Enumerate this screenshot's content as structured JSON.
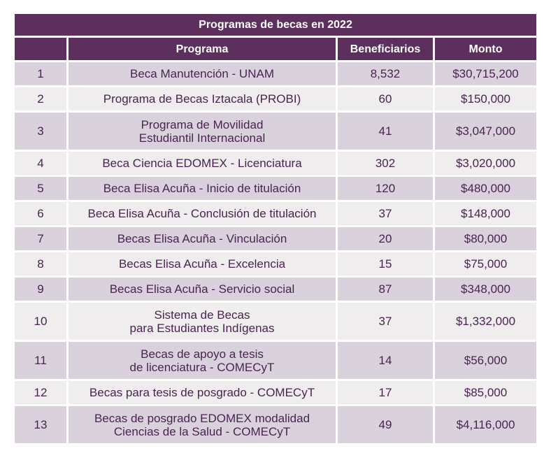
{
  "table": {
    "title": "Programas de becas en 2022",
    "headers": {
      "number": "",
      "program": "Programa",
      "beneficiaries": "Beneficiarios",
      "amount": "Monto"
    },
    "rows": [
      {
        "num": "1",
        "program": [
          "Beca Manutención - UNAM"
        ],
        "beneficiaries": "8,532",
        "amount": "$30,715,200"
      },
      {
        "num": "2",
        "program": [
          "Programa de Becas Iztacala (PROBI)"
        ],
        "beneficiaries": "60",
        "amount": "$150,000"
      },
      {
        "num": "3",
        "program": [
          "Programa de Movilidad",
          "Estudiantil Internacional"
        ],
        "beneficiaries": "41",
        "amount": "$3,047,000"
      },
      {
        "num": "4",
        "program": [
          "Beca Ciencia EDOMEX - Licenciatura"
        ],
        "beneficiaries": "302",
        "amount": "$3,020,000"
      },
      {
        "num": "5",
        "program": [
          "Beca Elisa Acuña - Inicio de titulación"
        ],
        "beneficiaries": "120",
        "amount": "$480,000"
      },
      {
        "num": "6",
        "program": [
          "Beca Elisa Acuña - Conclusión de titulación"
        ],
        "beneficiaries": "37",
        "amount": "$148,000"
      },
      {
        "num": "7",
        "program": [
          "Becas Elisa Acuña - Vinculación"
        ],
        "beneficiaries": "20",
        "amount": "$80,000"
      },
      {
        "num": "8",
        "program": [
          "Becas Elisa Acuña - Excelencia"
        ],
        "beneficiaries": "15",
        "amount": "$75,000"
      },
      {
        "num": "9",
        "program": [
          "Becas Elisa Acuña - Servicio social"
        ],
        "beneficiaries": "87",
        "amount": "$348,000"
      },
      {
        "num": "10",
        "program": [
          "Sistema de Becas",
          "para Estudiantes Indígenas"
        ],
        "beneficiaries": "37",
        "amount": "$1,332,000"
      },
      {
        "num": "11",
        "program": [
          "Becas de apoyo a tesis",
          "de licenciatura - COMECyT"
        ],
        "beneficiaries": "14",
        "amount": "$56,000"
      },
      {
        "num": "12",
        "program": [
          "Becas para tesis de posgrado - COMECyT"
        ],
        "beneficiaries": "17",
        "amount": "$85,000"
      },
      {
        "num": "13",
        "program": [
          "Becas de posgrado EDOMEX modalidad",
          "Ciencias de la Salud - COMECyT"
        ],
        "beneficiaries": "49",
        "amount": "$4,116,000"
      }
    ]
  }
}
